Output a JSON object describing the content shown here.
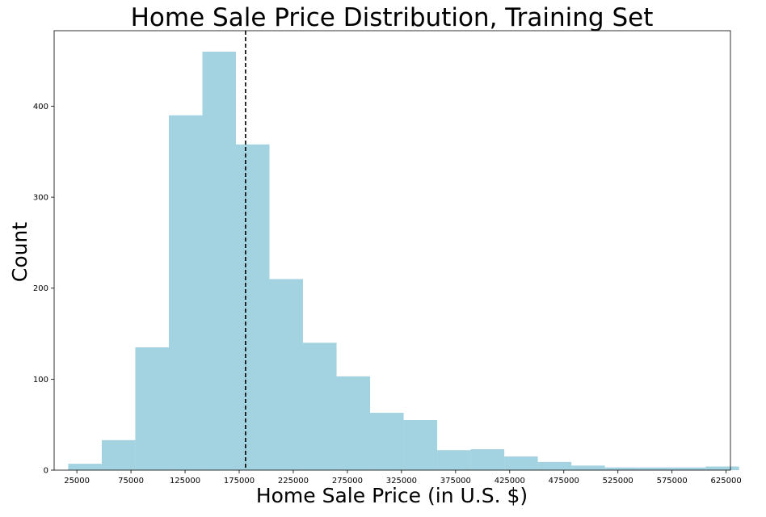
{
  "chart_data": {
    "type": "bar",
    "title": "Home Sale Price Distribution, Training Set",
    "xlabel": "Home Sale Price (in U.S. $)",
    "ylabel": "Count",
    "bar_color": "#a3d2e1",
    "mean_line_color": "#000000",
    "mean_line_style": "dashed",
    "mean_value": 180900,
    "xlim": [
      4000,
      629000
    ],
    "ylim": [
      0,
      483
    ],
    "grid": false,
    "xticks": [
      25000,
      75000,
      125000,
      175000,
      225000,
      275000,
      325000,
      375000,
      425000,
      475000,
      525000,
      575000,
      625000
    ],
    "xtick_labels": [
      "25000",
      "75000",
      "125000",
      "175000",
      "225000",
      "275000",
      "325000",
      "375000",
      "425000",
      "475000",
      "525000",
      "575000",
      "625000"
    ],
    "yticks": [
      0,
      100,
      200,
      300,
      400
    ],
    "ytick_labels": [
      "0",
      "100",
      "200",
      "300",
      "400"
    ],
    "bin_start": 17000,
    "bin_width": 31000,
    "values": [
      7,
      33,
      135,
      390,
      460,
      358,
      210,
      140,
      103,
      63,
      55,
      22,
      23,
      15,
      9,
      5,
      3,
      3,
      3,
      4
    ]
  }
}
